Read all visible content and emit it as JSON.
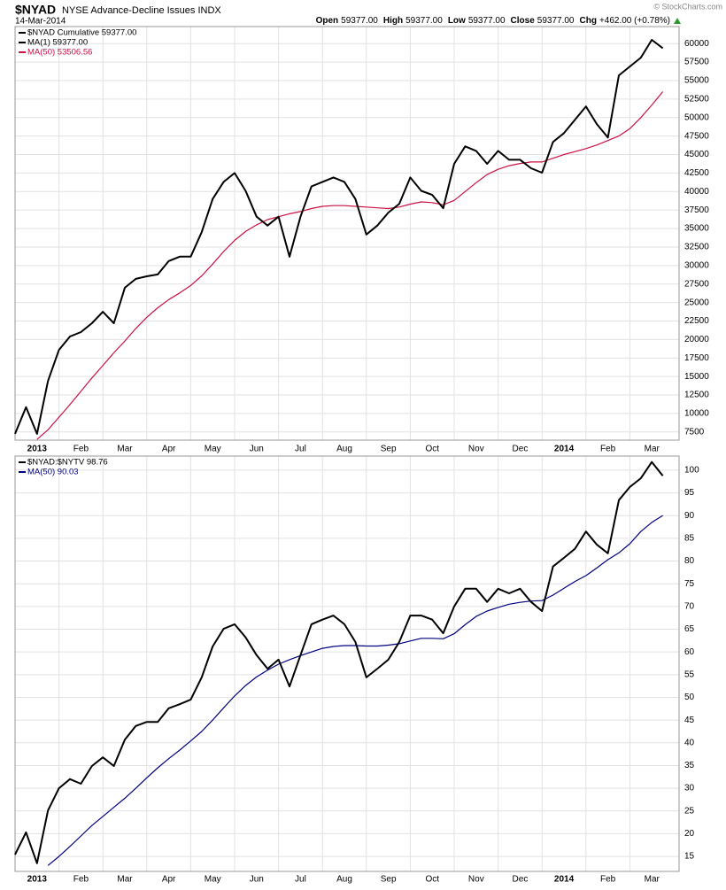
{
  "header": {
    "symbol": "$NYAD",
    "name": "NYSE Advance-Decline Issues INDX",
    "date": "14-Mar-2014",
    "quote": [
      {
        "label": "Open",
        "value": "59377.00"
      },
      {
        "label": "High",
        "value": "59377.00"
      },
      {
        "label": "Low",
        "value": "59377.00"
      },
      {
        "label": "Close",
        "value": "59377.00"
      },
      {
        "label": "Chg",
        "value": "+462.00 (+0.78%)"
      }
    ],
    "copyright": "© StockCharts.com"
  },
  "chart_data": [
    {
      "type": "line",
      "x": [
        0,
        0.25,
        0.5,
        0.75,
        1,
        1.25,
        1.5,
        1.75,
        2,
        2.25,
        2.5,
        2.75,
        3,
        3.25,
        3.5,
        3.75,
        4,
        4.25,
        4.5,
        4.75,
        5,
        5.25,
        5.5,
        5.75,
        6,
        6.25,
        6.5,
        6.75,
        7,
        7.25,
        7.5,
        7.75,
        8,
        8.25,
        8.5,
        8.75,
        9,
        9.25,
        9.5,
        9.75,
        10,
        10.25,
        10.5,
        10.75,
        11,
        11.25,
        11.5,
        11.75,
        12,
        12.25,
        12.5,
        12.75,
        13,
        13.25,
        13.5,
        13.75,
        14,
        14.25,
        14.5,
        14.75
      ],
      "series": [
        {
          "name": "$NYAD Cumulative 59377.00",
          "color": "#000000",
          "values": [
            7250,
            10850,
            7250,
            14400,
            18600,
            20400,
            21000,
            22200,
            23750,
            22200,
            27000,
            28200,
            28550,
            28800,
            30600,
            31200,
            31200,
            34500,
            39000,
            41300,
            42500,
            40100,
            36600,
            35400,
            36600,
            31200,
            36600,
            40700,
            41300,
            41900,
            41300,
            39000,
            34200,
            35400,
            37150,
            38350,
            41900,
            40100,
            39550,
            37750,
            43750,
            46100,
            45500,
            43750,
            45500,
            44300,
            44300,
            43150,
            42550,
            46700,
            47900,
            49700,
            51500,
            49100,
            47300,
            55700,
            56900,
            58100,
            60500,
            59377
          ]
        },
        {
          "name": "MA(50) 53506.56",
          "color": "#cc1144",
          "values": [
            null,
            null,
            6500,
            7800,
            9500,
            11200,
            13000,
            14800,
            16500,
            18200,
            19800,
            21500,
            23000,
            24300,
            25400,
            26300,
            27300,
            28600,
            30200,
            31900,
            33400,
            34600,
            35500,
            36200,
            36600,
            37000,
            37300,
            37700,
            38000,
            38100,
            38100,
            38000,
            37900,
            37800,
            37700,
            37900,
            38300,
            38600,
            38500,
            38200,
            38800,
            40000,
            41200,
            42300,
            43000,
            43500,
            43800,
            44000,
            44000,
            44500,
            45000,
            45400,
            45800,
            46300,
            46900,
            47500,
            48500,
            50000,
            51700,
            53506.56
          ]
        }
      ],
      "legend_notes": [
        "MA(1) 59377.00"
      ],
      "xlim": [
        0,
        15.12
      ],
      "xticks": [
        {
          "value": 0,
          "label": "2013"
        },
        {
          "value": 1,
          "label": "Feb"
        },
        {
          "value": 2,
          "label": "Mar"
        },
        {
          "value": 3,
          "label": "Apr"
        },
        {
          "value": 4,
          "label": "May"
        },
        {
          "value": 5,
          "label": "Jun"
        },
        {
          "value": 6,
          "label": "Jul"
        },
        {
          "value": 7,
          "label": "Aug"
        },
        {
          "value": 8,
          "label": "Sep"
        },
        {
          "value": 9,
          "label": "Oct"
        },
        {
          "value": 10,
          "label": "Nov"
        },
        {
          "value": 11,
          "label": "Dec"
        },
        {
          "value": 12,
          "label": "2014"
        },
        {
          "value": 13,
          "label": "Feb"
        },
        {
          "value": 14,
          "label": "Mar"
        }
      ],
      "ylim": [
        6400,
        62300
      ],
      "yticks": [
        7500,
        10000,
        12500,
        15000,
        17500,
        20000,
        22500,
        25000,
        27500,
        30000,
        32500,
        35000,
        37500,
        40000,
        42500,
        45000,
        47500,
        50000,
        52500,
        55000,
        57500,
        60000
      ],
      "grid": true
    },
    {
      "type": "line",
      "x": [
        0,
        0.25,
        0.5,
        0.75,
        1,
        1.25,
        1.5,
        1.75,
        2,
        2.25,
        2.5,
        2.75,
        3,
        3.25,
        3.5,
        3.75,
        4,
        4.25,
        4.5,
        4.75,
        5,
        5.25,
        5.5,
        5.75,
        6,
        6.25,
        6.5,
        6.75,
        7,
        7.25,
        7.5,
        7.75,
        8,
        8.25,
        8.5,
        8.75,
        9,
        9.25,
        9.5,
        9.75,
        10,
        10.25,
        10.5,
        10.75,
        11,
        11.25,
        11.5,
        11.75,
        12,
        12.25,
        12.5,
        12.75,
        13,
        13.25,
        13.5,
        13.75,
        14,
        14.25,
        14.5,
        14.75
      ],
      "series": [
        {
          "name": "$NYAD:$NYTV 98.76",
          "color": "#000000",
          "values": [
            15.4,
            20.3,
            13.5,
            25.1,
            30.0,
            32.0,
            31.0,
            34.9,
            36.8,
            34.9,
            40.7,
            43.7,
            44.6,
            44.6,
            47.6,
            48.5,
            49.5,
            54.4,
            61.2,
            65.1,
            66.1,
            63.2,
            59.3,
            56.3,
            58.3,
            52.4,
            59.3,
            66.1,
            67.1,
            68.0,
            66.1,
            62.2,
            54.4,
            56.3,
            58.3,
            62.2,
            68.0,
            68.0,
            67.1,
            64.1,
            70.0,
            73.9,
            73.9,
            71.0,
            73.9,
            72.9,
            73.9,
            71.0,
            69.0,
            78.8,
            80.7,
            82.7,
            86.5,
            83.6,
            81.7,
            93.4,
            96.3,
            98.2,
            101.8,
            98.76
          ]
        },
        {
          "name": "MA(50) 90.03",
          "color": "#000080",
          "values": [
            null,
            null,
            null,
            13.0,
            15.0,
            17.2,
            19.5,
            21.8,
            23.8,
            25.8,
            27.8,
            30.0,
            32.3,
            34.5,
            36.5,
            38.4,
            40.4,
            42.5,
            45.0,
            47.7,
            50.3,
            52.6,
            54.5,
            56.0,
            57.3,
            58.3,
            59.2,
            60.0,
            60.8,
            61.2,
            61.4,
            61.4,
            61.3,
            61.3,
            61.5,
            61.8,
            62.4,
            63.0,
            63.0,
            62.9,
            64.0,
            66.0,
            67.8,
            69.0,
            69.8,
            70.5,
            70.9,
            71.2,
            71.3,
            72.5,
            74.0,
            75.5,
            76.8,
            78.5,
            80.3,
            81.8,
            83.8,
            86.5,
            88.5,
            90.03
          ]
        }
      ],
      "xlim": [
        0,
        15.12
      ],
      "xticks": [
        {
          "value": 0,
          "label": "2013"
        },
        {
          "value": 1,
          "label": "Feb"
        },
        {
          "value": 2,
          "label": "Mar"
        },
        {
          "value": 3,
          "label": "Apr"
        },
        {
          "value": 4,
          "label": "May"
        },
        {
          "value": 5,
          "label": "Jun"
        },
        {
          "value": 6,
          "label": "Jul"
        },
        {
          "value": 7,
          "label": "Aug"
        },
        {
          "value": 8,
          "label": "Sep"
        },
        {
          "value": 9,
          "label": "Oct"
        },
        {
          "value": 10,
          "label": "Nov"
        },
        {
          "value": 11,
          "label": "Dec"
        },
        {
          "value": 12,
          "label": "2014"
        },
        {
          "value": 13,
          "label": "Feb"
        },
        {
          "value": 14,
          "label": "Mar"
        }
      ],
      "ylim": [
        11.7,
        103.1
      ],
      "yticks": [
        15,
        20,
        25,
        30,
        35,
        40,
        45,
        50,
        55,
        60,
        65,
        70,
        75,
        80,
        85,
        90,
        95,
        100
      ],
      "grid": true
    }
  ]
}
